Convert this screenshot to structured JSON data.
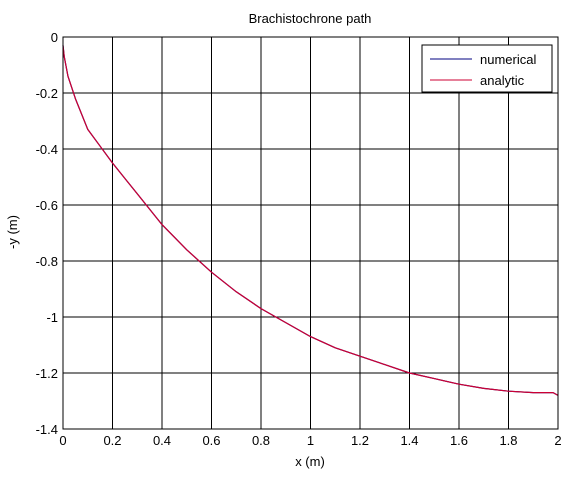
{
  "chart_data": {
    "type": "line",
    "title": "Brachistochrone path",
    "xlabel": "x (m)",
    "ylabel": "-y (m)",
    "xlim": [
      0,
      2
    ],
    "ylim": [
      -1.4,
      0
    ],
    "xticks": [
      0,
      0.2,
      0.4,
      0.6,
      0.8,
      1,
      1.2,
      1.4,
      1.6,
      1.8,
      2
    ],
    "yticks": [
      0,
      -0.2,
      -0.4,
      -0.6,
      -0.8,
      -1,
      -1.2,
      -1.4
    ],
    "xtick_labels": [
      "0",
      "0.2",
      "0.4",
      "0.6",
      "0.8",
      "1",
      "1.2",
      "1.4",
      "1.6",
      "1.8",
      "2"
    ],
    "ytick_labels": [
      "0",
      "-0.2",
      "-0.4",
      "-0.6",
      "-0.8",
      "-1",
      "-1.2",
      "-1.4"
    ],
    "grid": true,
    "legend_position": "top-right",
    "series": [
      {
        "name": "numerical",
        "color": "#000080",
        "x": [
          0,
          0.005,
          0.02,
          0.05,
          0.1,
          0.15,
          0.2,
          0.3,
          0.4,
          0.5,
          0.6,
          0.7,
          0.8,
          0.9,
          1.0,
          1.1,
          1.2,
          1.3,
          1.4,
          1.5,
          1.6,
          1.7,
          1.8,
          1.9,
          1.98,
          2.0
        ],
        "y": [
          -0.03,
          -0.07,
          -0.14,
          -0.22,
          -0.33,
          -0.39,
          -0.45,
          -0.56,
          -0.67,
          -0.76,
          -0.84,
          -0.91,
          -0.97,
          -1.02,
          -1.07,
          -1.11,
          -1.14,
          -1.17,
          -1.2,
          -1.22,
          -1.24,
          -1.255,
          -1.265,
          -1.27,
          -1.27,
          -1.28
        ]
      },
      {
        "name": "analytic",
        "color": "#cc0033",
        "x": [
          0,
          0.005,
          0.02,
          0.05,
          0.1,
          0.15,
          0.2,
          0.3,
          0.4,
          0.5,
          0.6,
          0.7,
          0.8,
          0.9,
          1.0,
          1.1,
          1.2,
          1.3,
          1.4,
          1.5,
          1.6,
          1.7,
          1.8,
          1.9,
          1.98,
          2.0
        ],
        "y": [
          -0.03,
          -0.07,
          -0.14,
          -0.22,
          -0.33,
          -0.39,
          -0.45,
          -0.56,
          -0.67,
          -0.76,
          -0.84,
          -0.91,
          -0.97,
          -1.02,
          -1.07,
          -1.11,
          -1.14,
          -1.17,
          -1.2,
          -1.22,
          -1.24,
          -1.255,
          -1.265,
          -1.27,
          -1.27,
          -1.28
        ]
      }
    ]
  }
}
